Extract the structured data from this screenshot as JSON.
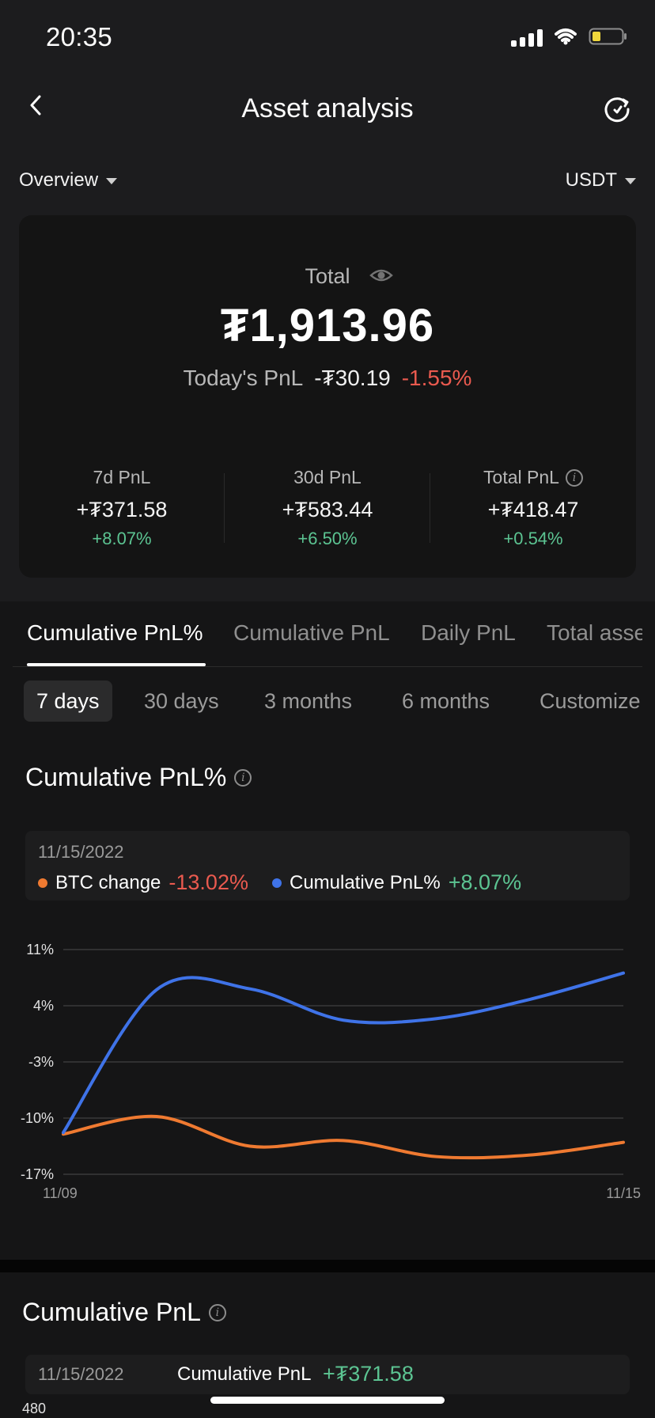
{
  "status_bar": {
    "time": "20:35"
  },
  "header": {
    "title": "Asset analysis"
  },
  "filters": {
    "overview": "Overview",
    "currency": "USDT"
  },
  "summary": {
    "total_label": "Total",
    "total_value": "₮1,913.96",
    "today_label": "Today's PnL",
    "today_amount": "-₮30.19",
    "today_pct": "-1.55%",
    "stats": [
      {
        "label": "7d PnL",
        "value": "+₮371.58",
        "pct": "+8.07%"
      },
      {
        "label": "30d PnL",
        "value": "+₮583.44",
        "pct": "+6.50%"
      },
      {
        "label": "Total PnL",
        "value": "+₮418.47",
        "pct": "+0.54%"
      }
    ]
  },
  "tabs": [
    {
      "label": "Cumulative PnL%"
    },
    {
      "label": "Cumulative PnL"
    },
    {
      "label": "Daily PnL"
    },
    {
      "label": "Total asse"
    }
  ],
  "ranges": [
    {
      "label": "7 days"
    },
    {
      "label": "30 days"
    },
    {
      "label": "3 months"
    },
    {
      "label": "6 months"
    },
    {
      "label": "Customize"
    }
  ],
  "section": {
    "title": "Cumulative PnL%"
  },
  "legend": {
    "date": "11/15/2022",
    "btc_label": "BTC change",
    "btc_value": "-13.02%",
    "pnl_label": "Cumulative PnL%",
    "pnl_value": "+8.07%"
  },
  "chart_data": {
    "type": "line",
    "x": [
      "11/09",
      "11/10",
      "11/11",
      "11/12",
      "11/13",
      "11/14",
      "11/15"
    ],
    "x_tick_labels": [
      "11/09",
      "11/15"
    ],
    "y_tick_labels": [
      "11%",
      "4%",
      "-3%",
      "-10%",
      "-17%"
    ],
    "ylim": [
      -17,
      11
    ],
    "grid": true,
    "series": [
      {
        "name": "BTC change",
        "color": "#ef7a31",
        "values": [
          -12.0,
          -9.8,
          -13.5,
          -12.8,
          -14.8,
          -14.6,
          -13.02
        ]
      },
      {
        "name": "Cumulative PnL%",
        "color": "#3f73e8",
        "values": [
          -11.8,
          6.0,
          6.1,
          2.2,
          2.4,
          4.8,
          8.07
        ]
      }
    ]
  },
  "bottom": {
    "title": "Cumulative PnL",
    "date": "11/15/2022",
    "label": "Cumulative PnL",
    "value": "+₮371.58",
    "axis_top": "480"
  }
}
